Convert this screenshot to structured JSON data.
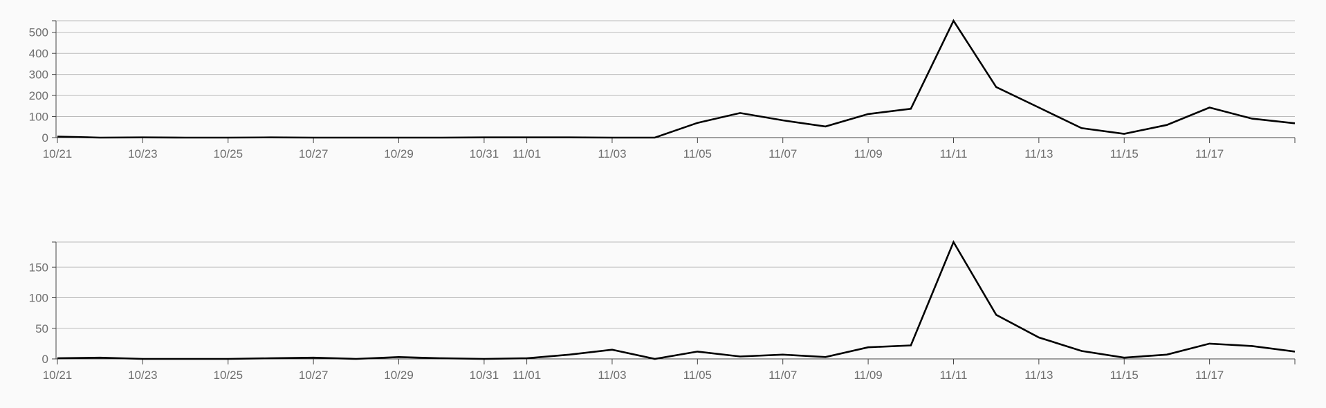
{
  "chart_data": [
    {
      "type": "line",
      "x": [
        "10/21",
        "10/22",
        "10/23",
        "10/24",
        "10/25",
        "10/26",
        "10/27",
        "10/28",
        "10/29",
        "10/30",
        "10/31",
        "11/01",
        "11/02",
        "11/03",
        "11/04",
        "11/05",
        "11/06",
        "11/07",
        "11/08",
        "11/09",
        "11/10",
        "11/11",
        "11/12",
        "11/13",
        "11/14",
        "11/15",
        "11/16",
        "11/17",
        "11/18",
        "11/19"
      ],
      "series": [
        {
          "values": [
            5,
            0,
            1,
            0,
            0,
            1,
            0,
            0,
            0,
            0,
            1,
            1,
            1,
            0,
            0,
            70,
            117,
            82,
            53,
            112,
            137,
            555,
            240,
            143,
            45,
            18,
            60,
            143,
            90,
            68
          ]
        }
      ],
      "xticks": [
        "10/21",
        "10/23",
        "10/25",
        "10/27",
        "10/29",
        "10/31",
        "11/01",
        "11/03",
        "11/05",
        "11/07",
        "11/09",
        "11/11",
        "11/13",
        "11/15",
        "11/17"
      ],
      "yticks": [
        0,
        100,
        200,
        300,
        400,
        500
      ],
      "ylim": [
        0,
        555
      ],
      "grid": true,
      "colors": {
        "line": "#000000",
        "grid": "#bbbbbb",
        "axis": "#444444",
        "text": "#6e6e6e"
      }
    },
    {
      "type": "line",
      "x": [
        "10/21",
        "10/22",
        "10/23",
        "10/24",
        "10/25",
        "10/26",
        "10/27",
        "10/28",
        "10/29",
        "10/30",
        "10/31",
        "11/01",
        "11/02",
        "11/03",
        "11/04",
        "11/05",
        "11/06",
        "11/07",
        "11/08",
        "11/09",
        "11/10",
        "11/11",
        "11/12",
        "11/13",
        "11/14",
        "11/15",
        "11/16",
        "11/17",
        "11/18",
        "11/19"
      ],
      "series": [
        {
          "values": [
            1,
            2,
            0,
            0,
            0,
            1,
            2,
            0,
            3,
            1,
            0,
            1,
            7,
            15,
            0,
            12,
            4,
            7,
            3,
            19,
            22,
            191,
            72,
            35,
            13,
            2,
            7,
            25,
            21,
            12
          ]
        }
      ],
      "xticks": [
        "10/21",
        "10/23",
        "10/25",
        "10/27",
        "10/29",
        "10/31",
        "11/01",
        "11/03",
        "11/05",
        "11/07",
        "11/09",
        "11/11",
        "11/13",
        "11/15",
        "11/17"
      ],
      "yticks": [
        0,
        50,
        100,
        150
      ],
      "ylim": [
        0,
        191
      ],
      "grid": true,
      "colors": {
        "line": "#000000",
        "grid": "#bbbbbb",
        "axis": "#444444",
        "text": "#6e6e6e"
      }
    }
  ]
}
